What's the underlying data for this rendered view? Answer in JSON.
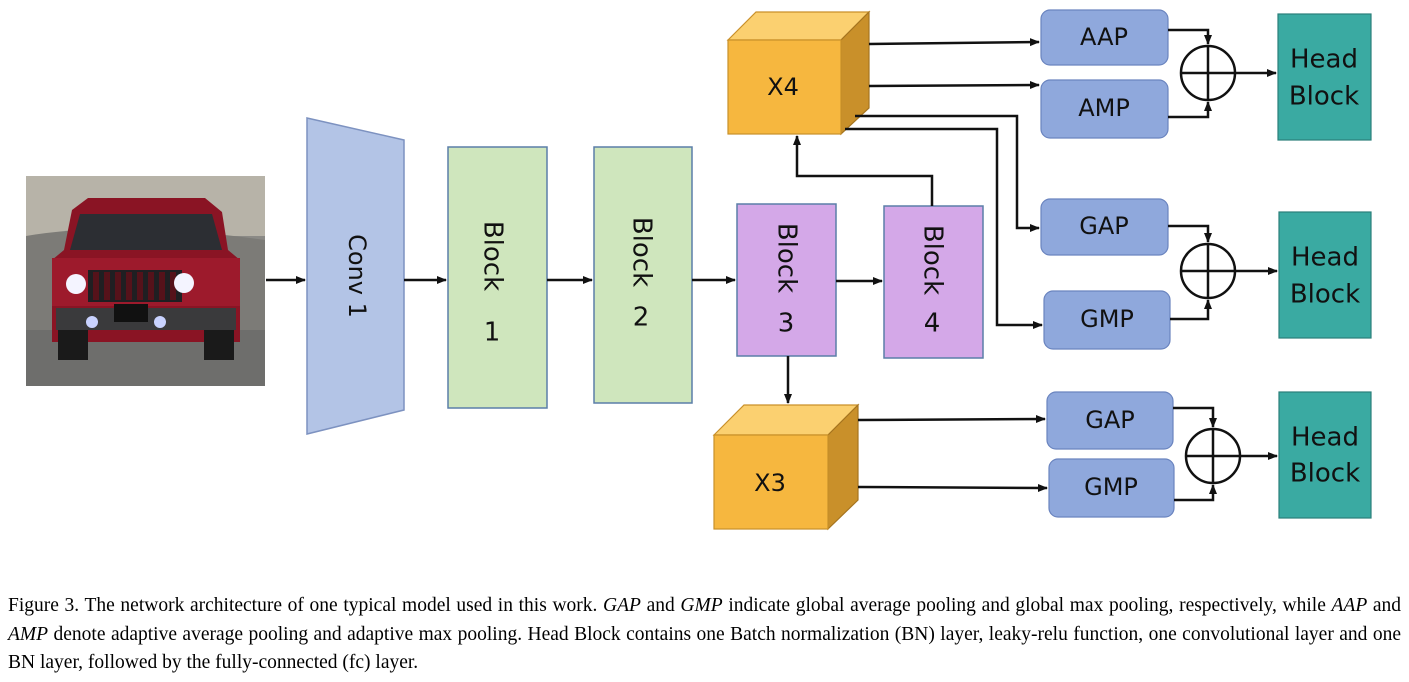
{
  "diagram": {
    "input_image": {
      "name": "red-suv-photo"
    },
    "nodes": {
      "conv1": "Conv 1",
      "block1": [
        "Block",
        "1"
      ],
      "block2": [
        "Block",
        "2"
      ],
      "block3": [
        "Block",
        "3"
      ],
      "block4": [
        "Block",
        "4"
      ],
      "x4": "X4",
      "x3": "X3",
      "aap": "AAP",
      "amp": "AMP",
      "gap_mid": "GAP",
      "gmp_mid": "GMP",
      "gap_low": "GAP",
      "gmp_low": "GMP",
      "head1": [
        "Head",
        "Block"
      ],
      "head2": [
        "Head",
        "Block"
      ],
      "head3": [
        "Head",
        "Block"
      ]
    },
    "colors": {
      "conv": "#b3c4e6",
      "block_green": "#cfe6bd",
      "block_purple": "#d4a8e8",
      "cube_front": "#f6b73f",
      "cube_top": "#fbd070",
      "cube_side": "#c9902a",
      "pool": "#8fa8dc",
      "head": "#3aaaa2",
      "arrow": "#111111"
    }
  },
  "caption": {
    "prefix": "Figure 3. The network architecture of one typical model used in this work.",
    "gap": "GAP",
    "and1": "and",
    "gmp": "GMP",
    "mid1": "indicate global average pooling and global max pooling, respectively, while",
    "aap": "AAP",
    "and2": "and",
    "amp": "AMP",
    "suffix": "denote adaptive average pooling and adaptive max pooling. Head Block contains one Batch normalization (BN) layer, leaky-relu function, one convolutional layer and one BN layer, followed by the fully-connected (fc) layer."
  }
}
